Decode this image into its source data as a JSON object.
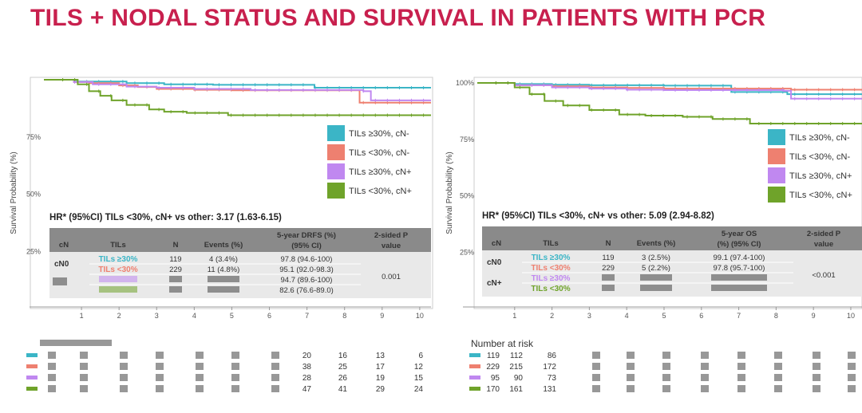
{
  "slide": {
    "title": "TILS + NODAL STATUS AND SURVIVAL IN PATIENTS WITH PCR"
  },
  "colors": {
    "teal": "#3bb5c6",
    "salmon": "#ee8070",
    "lilac": "#c088f0",
    "green": "#6fa32a",
    "header": "#8a8a8a",
    "row": "#e9e9e9"
  },
  "chart_data": [
    {
      "type": "line",
      "title": "",
      "xlabel": "",
      "ylabel": "Survival Probability (%)",
      "xlim": [
        0,
        10.3
      ],
      "ylim": [
        0,
        100
      ],
      "x_ticks": [
        "1",
        "2",
        "3",
        "4",
        "5",
        "6",
        "7",
        "8",
        "9",
        "10"
      ],
      "y_ticks": [
        "25%",
        "50%",
        "75%"
      ],
      "series": [
        {
          "name": "TILs ≥30%, cN-",
          "color": "#3bb5c6",
          "points": [
            [
              0,
              100
            ],
            [
              0.6,
              100
            ],
            [
              0.8,
              99.2
            ],
            [
              2,
              99.2
            ],
            [
              2.2,
              98.5
            ],
            [
              3,
              98.5
            ],
            [
              3.2,
              98
            ],
            [
              4.3,
              98
            ],
            [
              4.5,
              97.8
            ],
            [
              7,
              97.8
            ],
            [
              7.2,
              96.5
            ],
            [
              10.3,
              96.5
            ]
          ]
        },
        {
          "name": "TILs <30%, cN-",
          "color": "#ee8070",
          "points": [
            [
              0,
              100
            ],
            [
              0.8,
              99
            ],
            [
              1.2,
              98.5
            ],
            [
              2,
              97.5
            ],
            [
              2.5,
              96.8
            ],
            [
              3,
              96
            ],
            [
              4,
              95.6
            ],
            [
              5,
              95.4
            ],
            [
              8.3,
              95.4
            ],
            [
              8.4,
              90
            ],
            [
              10.3,
              90
            ]
          ]
        },
        {
          "name": "TILs ≥30%, cN+",
          "color": "#c088f0",
          "points": [
            [
              0,
              100
            ],
            [
              0.8,
              99
            ],
            [
              1.3,
              98
            ],
            [
              2.2,
              97
            ],
            [
              3,
              96.5
            ],
            [
              4,
              96
            ],
            [
              5.5,
              95.5
            ],
            [
              8.5,
              95
            ],
            [
              8.7,
              91
            ],
            [
              10.3,
              91
            ]
          ]
        },
        {
          "name": "TILs <30%, cN+",
          "color": "#6fa32a",
          "points": [
            [
              0,
              100
            ],
            [
              0.9,
              98
            ],
            [
              1.2,
              95
            ],
            [
              1.5,
              93
            ],
            [
              1.8,
              91
            ],
            [
              2.2,
              89
            ],
            [
              2.8,
              87
            ],
            [
              3.2,
              86
            ],
            [
              3.8,
              85.5
            ],
            [
              4.5,
              85.5
            ],
            [
              4.9,
              84.5
            ],
            [
              6,
              84.5
            ],
            [
              10.3,
              84.5
            ]
          ]
        }
      ],
      "hr_text": "HR* (95%CI) TILs <30%, cN+ vs other: 3.17 (1.63-6.15)",
      "table": {
        "headers": [
          "cN",
          "TILs",
          "N",
          "Events (%)",
          "5-year DRFS (%)",
          "(95% CI)",
          "2-sided P",
          "value"
        ],
        "rows": [
          {
            "cn": "cN0",
            "tils": "TILs ≥30%",
            "n": "119",
            "events": "4 (3.4%)",
            "rate": "97.8 (94.6-100)",
            "color": "#3bb5c6"
          },
          {
            "cn": "",
            "tils": "TILs <30%",
            "n": "229",
            "events": "11 (4.8%)",
            "rate": "95.1 (92.0-98.3)",
            "color": "#ee8070"
          },
          {
            "cn": "",
            "tils": "",
            "n": "",
            "events": "",
            "rate": "94.7 (89.6-100)",
            "color": "#c088f0"
          },
          {
            "cn": "",
            "tils": "",
            "n": "",
            "events": "",
            "rate": "82.6 (76.6-89.0)",
            "color": "#6fa32a"
          }
        ],
        "p_value": "0.001"
      },
      "risk": {
        "label": "",
        "rows": [
          [
            "20",
            "16",
            "13",
            "6"
          ],
          [
            "38",
            "25",
            "17",
            "12"
          ],
          [
            "28",
            "26",
            "19",
            "15"
          ],
          [
            "47",
            "41",
            "29",
            "24"
          ]
        ]
      }
    },
    {
      "type": "line",
      "title": "",
      "xlabel": "",
      "ylabel": "Survival Probability (%)",
      "xlim": [
        0,
        10.3
      ],
      "ylim": [
        0,
        100
      ],
      "x_ticks": [
        "1",
        "2",
        "3",
        "4",
        "5",
        "6",
        "7",
        "8",
        "9",
        "10"
      ],
      "y_ticks": [
        "25%",
        "50%",
        "75%",
        "100%"
      ],
      "series": [
        {
          "name": "TILs ≥30%, cN-",
          "color": "#3bb5c6",
          "points": [
            [
              0,
              100
            ],
            [
              1,
              99.5
            ],
            [
              2,
              99.2
            ],
            [
              3,
              99
            ],
            [
              4,
              99
            ],
            [
              5,
              98.8
            ],
            [
              6.5,
              98.8
            ],
            [
              6.8,
              96
            ],
            [
              8,
              96
            ],
            [
              8.3,
              95
            ],
            [
              10.3,
              95
            ]
          ]
        },
        {
          "name": "TILs <30%, cN-",
          "color": "#ee8070",
          "points": [
            [
              0,
              100
            ],
            [
              1,
              99
            ],
            [
              2,
              98.5
            ],
            [
              3,
              98
            ],
            [
              4,
              97.8
            ],
            [
              5,
              97.5
            ],
            [
              8.2,
              97.5
            ],
            [
              8.4,
              97
            ],
            [
              10.3,
              97
            ]
          ]
        },
        {
          "name": "TILs ≥30%, cN+",
          "color": "#c088f0",
          "points": [
            [
              0,
              100
            ],
            [
              1,
              99
            ],
            [
              2,
              98
            ],
            [
              3,
              97.5
            ],
            [
              4,
              97
            ],
            [
              5,
              96.8
            ],
            [
              8.2,
              96.5
            ],
            [
              8.4,
              93
            ],
            [
              10.3,
              93
            ]
          ]
        },
        {
          "name": "TILs <30%, cN+",
          "color": "#6fa32a",
          "points": [
            [
              0,
              100
            ],
            [
              1,
              98
            ],
            [
              1.4,
              95
            ],
            [
              1.8,
              92
            ],
            [
              2.3,
              90
            ],
            [
              3,
              88
            ],
            [
              3.8,
              86
            ],
            [
              4.5,
              85.5
            ],
            [
              5.5,
              85
            ],
            [
              6.3,
              84
            ],
            [
              7.3,
              82
            ],
            [
              10.3,
              82
            ]
          ]
        }
      ],
      "hr_text": "HR* (95%CI) TILs <30%, cN+ vs other: 5.09 (2.94-8.82)",
      "table": {
        "headers": [
          "cN",
          "TILs",
          "N",
          "Events (%)",
          "5-year OS",
          "(%) (95% CI)",
          "2-sided P",
          "value"
        ],
        "rows": [
          {
            "cn": "cN0",
            "tils": "TILs ≥30%",
            "n": "119",
            "events": "3 (2.5%)",
            "rate": "99.1 (97.4-100)",
            "color": "#3bb5c6"
          },
          {
            "cn": "",
            "tils": "TILs <30%",
            "n": "229",
            "events": "5 (2.2%)",
            "rate": "97.8 (95.7-100)",
            "color": "#ee8070"
          },
          {
            "cn": "cN+",
            "tils": "TILs ≥30%",
            "n": "",
            "events": "",
            "rate": "",
            "color": "#c088f0"
          },
          {
            "cn": "",
            "tils": "TILs <30%",
            "n": "",
            "events": "",
            "rate": "",
            "color": "#6fa32a"
          }
        ],
        "p_value": "<0.001"
      },
      "risk": {
        "label": "Number at risk",
        "rows": [
          [
            "119",
            "112",
            "86"
          ],
          [
            "229",
            "215",
            "172"
          ],
          [
            "95",
            "90",
            "73"
          ],
          [
            "170",
            "161",
            "131"
          ]
        ]
      }
    }
  ]
}
